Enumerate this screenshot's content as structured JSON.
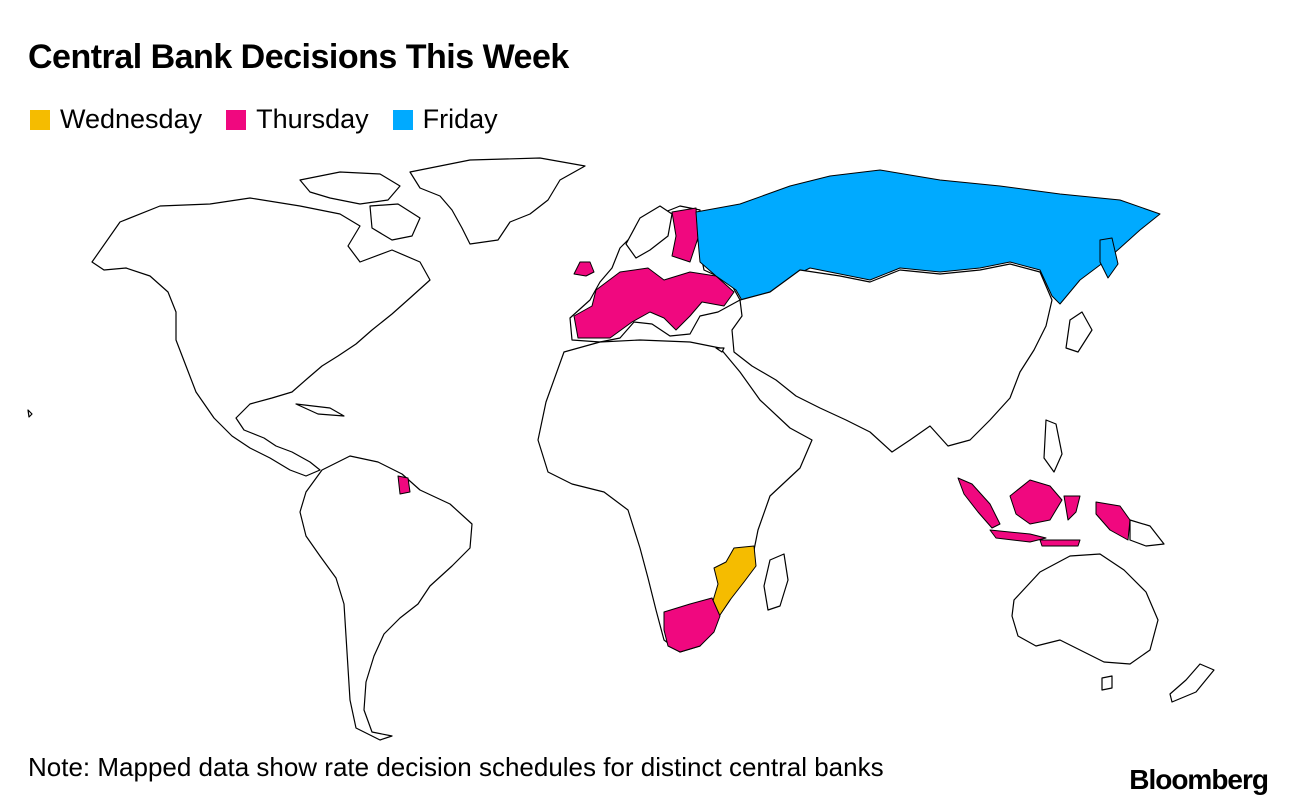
{
  "title": "Central Bank Decisions This Week",
  "legend": [
    {
      "label": "Wednesday",
      "color": "#f5bc00"
    },
    {
      "label": "Thursday",
      "color": "#f0087f"
    },
    {
      "label": "Friday",
      "color": "#00aaff"
    }
  ],
  "map": {
    "base_fill": "#ffffff",
    "border_color": "#000000",
    "highlighted": [
      {
        "region": "Mozambique",
        "day": "Wednesday"
      },
      {
        "region": "South Africa",
        "day": "Thursday"
      },
      {
        "region": "Euro area",
        "day": "Thursday"
      },
      {
        "region": "United Kingdom",
        "day": "Thursday"
      },
      {
        "region": "French Guiana",
        "day": "Thursday"
      },
      {
        "region": "Indonesia",
        "day": "Thursday"
      },
      {
        "region": "Russia",
        "day": "Friday"
      }
    ]
  },
  "note": "Note: Mapped data show rate decision schedules for distinct central banks",
  "source": "Bloomberg"
}
